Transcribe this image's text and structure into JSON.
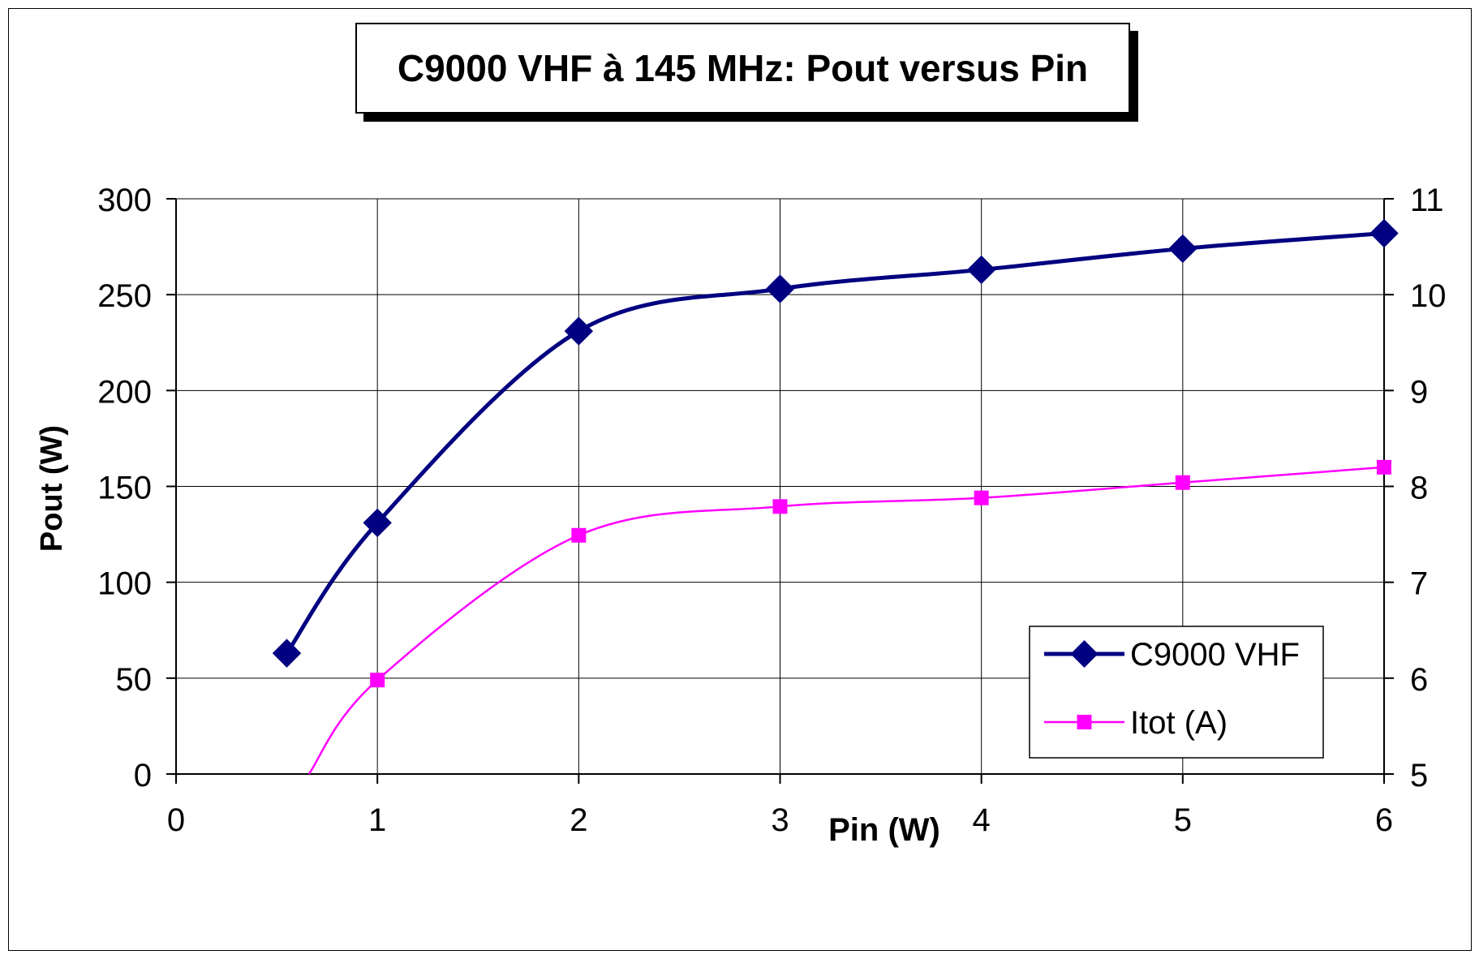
{
  "chart_data": {
    "type": "line",
    "title": "C9000 VHF à 145 MHz: Pout versus Pin",
    "xlabel": "Pin (W)",
    "ylabel": "Pout (W)",
    "xlim": [
      0,
      6
    ],
    "ylim": [
      0,
      300
    ],
    "y2lim": [
      5,
      11
    ],
    "x_ticks": [
      "0",
      "1",
      "2",
      "3",
      "4",
      "5",
      "6"
    ],
    "y_ticks": [
      "0",
      "50",
      "100",
      "150",
      "200",
      "250",
      "300"
    ],
    "y2_ticks": [
      "5",
      "6",
      "7",
      "8",
      "9",
      "10",
      "11"
    ],
    "grid": true,
    "legend_position": "bottom-right",
    "series": [
      {
        "name": "C9000 VHF",
        "axis": "left",
        "color": "#000080",
        "marker": "diamond",
        "x": [
          0.55,
          1,
          2,
          3,
          4,
          5,
          6
        ],
        "values": [
          63,
          131,
          231,
          253,
          263,
          274,
          282
        ]
      },
      {
        "name": "Itot (A)",
        "axis": "right",
        "color": "#ff00ff",
        "marker": "square",
        "x": [
          1,
          2,
          3,
          4,
          5,
          6
        ],
        "values": [
          5.98,
          7.49,
          7.79,
          7.88,
          8.04,
          8.2
        ],
        "curve_start": {
          "x": 0.66,
          "value": 5.0
        }
      }
    ]
  }
}
